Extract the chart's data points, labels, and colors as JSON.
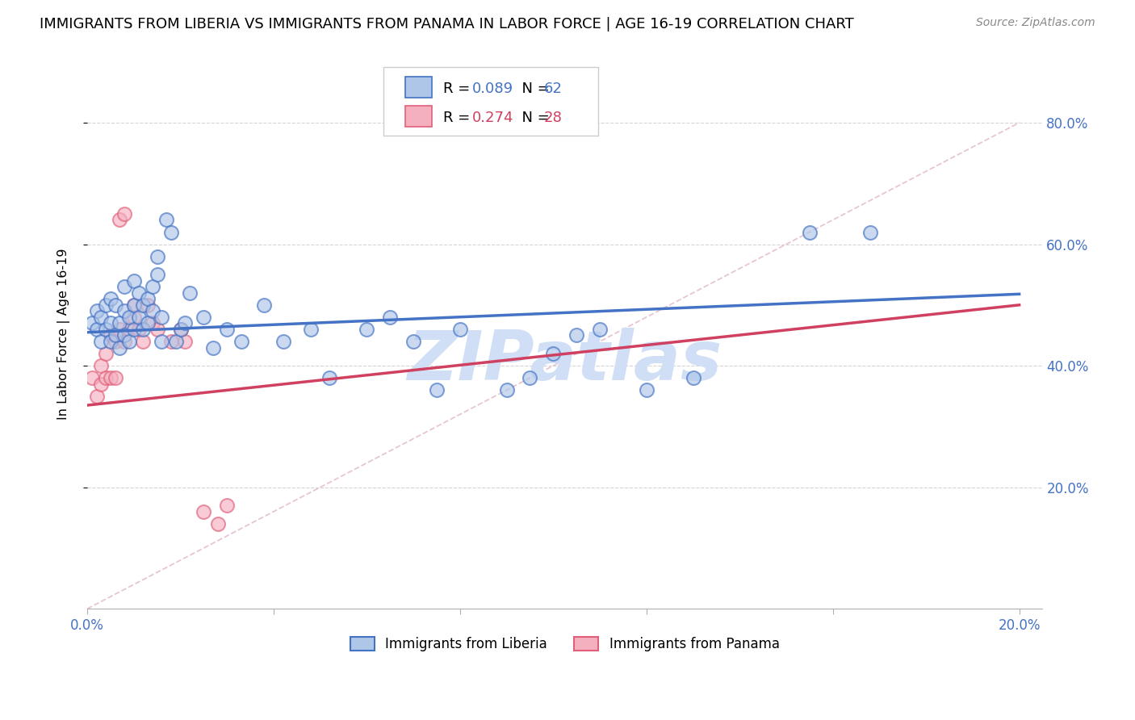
{
  "title": "IMMIGRANTS FROM LIBERIA VS IMMIGRANTS FROM PANAMA IN LABOR FORCE | AGE 16-19 CORRELATION CHART",
  "source": "Source: ZipAtlas.com",
  "ylabel": "In Labor Force | Age 16-19",
  "xlim": [
    0.0,
    0.205
  ],
  "ylim": [
    0.0,
    0.905
  ],
  "color_liberia_fill": "#aec6e8",
  "color_liberia_edge": "#4472c4",
  "color_panama_fill": "#f5b0c0",
  "color_panama_edge": "#e0607a",
  "color_reg_liberia": "#4472c4",
  "color_reg_panama": "#d04060",
  "color_diag": "#e0b8c8",
  "color_grid": "#d0d0d0",
  "color_tick": "#4472c4",
  "color_watermark": "#d0dff5",
  "watermark": "ZIPatlas",
  "legend_label1": "Immigrants from Liberia",
  "legend_label2": "Immigrants from Panama",
  "R_liberia": "0.089",
  "N_liberia": "62",
  "R_panama": "0.274",
  "N_panama": "28",
  "liberia_x": [
    0.001,
    0.002,
    0.002,
    0.003,
    0.003,
    0.004,
    0.004,
    0.005,
    0.005,
    0.005,
    0.006,
    0.006,
    0.007,
    0.007,
    0.008,
    0.008,
    0.008,
    0.009,
    0.009,
    0.01,
    0.01,
    0.01,
    0.011,
    0.011,
    0.012,
    0.012,
    0.013,
    0.013,
    0.014,
    0.014,
    0.015,
    0.015,
    0.016,
    0.016,
    0.017,
    0.018,
    0.019,
    0.02,
    0.021,
    0.022,
    0.025,
    0.027,
    0.03,
    0.033,
    0.038,
    0.042,
    0.048,
    0.052,
    0.06,
    0.065,
    0.07,
    0.075,
    0.08,
    0.09,
    0.095,
    0.1,
    0.105,
    0.11,
    0.12,
    0.13,
    0.155,
    0.168
  ],
  "liberia_y": [
    0.47,
    0.46,
    0.49,
    0.44,
    0.48,
    0.46,
    0.5,
    0.44,
    0.47,
    0.51,
    0.45,
    0.5,
    0.43,
    0.47,
    0.45,
    0.49,
    0.53,
    0.44,
    0.48,
    0.46,
    0.5,
    0.54,
    0.48,
    0.52,
    0.46,
    0.5,
    0.47,
    0.51,
    0.49,
    0.53,
    0.55,
    0.58,
    0.44,
    0.48,
    0.64,
    0.62,
    0.44,
    0.46,
    0.47,
    0.52,
    0.48,
    0.43,
    0.46,
    0.44,
    0.5,
    0.44,
    0.46,
    0.38,
    0.46,
    0.48,
    0.44,
    0.36,
    0.46,
    0.36,
    0.38,
    0.42,
    0.45,
    0.46,
    0.36,
    0.38,
    0.62,
    0.62
  ],
  "panama_x": [
    0.001,
    0.002,
    0.003,
    0.003,
    0.004,
    0.004,
    0.005,
    0.005,
    0.006,
    0.006,
    0.007,
    0.007,
    0.008,
    0.008,
    0.009,
    0.01,
    0.01,
    0.011,
    0.012,
    0.013,
    0.014,
    0.015,
    0.018,
    0.02,
    0.021,
    0.025,
    0.028,
    0.03
  ],
  "panama_y": [
    0.38,
    0.35,
    0.37,
    0.4,
    0.38,
    0.42,
    0.38,
    0.45,
    0.38,
    0.44,
    0.46,
    0.64,
    0.65,
    0.44,
    0.46,
    0.48,
    0.5,
    0.46,
    0.44,
    0.5,
    0.47,
    0.46,
    0.44,
    0.46,
    0.44,
    0.16,
    0.14,
    0.17
  ],
  "liberia_line_x": [
    0.0,
    0.2
  ],
  "liberia_line_y": [
    0.455,
    0.518
  ],
  "panama_line_x": [
    0.0,
    0.2
  ],
  "panama_line_y": [
    0.335,
    0.5
  ],
  "diag_line_x": [
    0.0,
    0.2
  ],
  "diag_line_y": [
    0.0,
    0.8
  ]
}
